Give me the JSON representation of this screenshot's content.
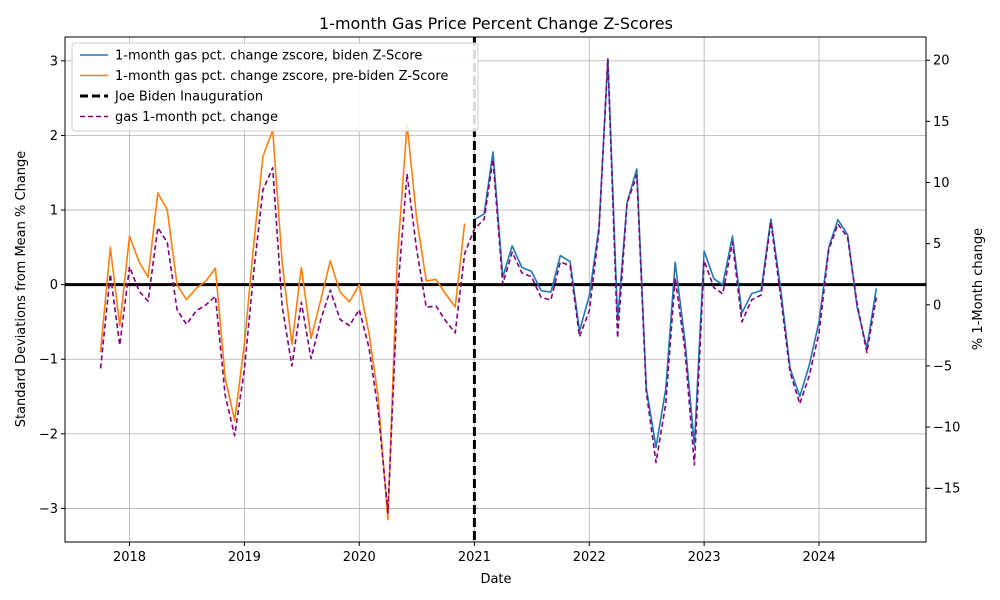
{
  "chart_data": {
    "type": "line",
    "title": "1-month Gas Price Percent Change Z-Scores",
    "xlabel": "Date",
    "ylabel": "Standard Deviations from Mean % Change",
    "ylabel_right": "% 1-Month change",
    "xlim": [
      "2017-06-10",
      "2024-12-06"
    ],
    "ylim": [
      -3.45,
      3.32
    ],
    "ylim_right": [
      -19.4,
      21.9
    ],
    "x_ticks": [
      "2018-01-01",
      "2019-01-01",
      "2020-01-01",
      "2021-01-01",
      "2022-01-01",
      "2023-01-01",
      "2024-01-01"
    ],
    "x_tick_labels": [
      "2018",
      "2019",
      "2020",
      "2021",
      "2022",
      "2023",
      "2024"
    ],
    "y_ticks": [
      -3,
      -2,
      -1,
      0,
      1,
      2,
      3
    ],
    "y_tick_labels": [
      "−3",
      "−2",
      "−1",
      "0",
      "1",
      "2",
      "3"
    ],
    "y_ticks_right": [
      -15,
      -10,
      -5,
      0,
      5,
      10,
      15,
      20
    ],
    "y_tick_labels_right": [
      "−15",
      "−10",
      "−5",
      "0",
      "5",
      "10",
      "15",
      "20"
    ],
    "grid": true,
    "legend_position": "top-left",
    "zero_line": 0,
    "inauguration_date": "2021-01-01",
    "colors": {
      "biden": "#1f77b4",
      "pre_biden": "#ff7f0e",
      "inauguration": "#000000",
      "pct_change": "#800080",
      "grid": "#b0b0b0"
    },
    "pre_biden": {
      "name": "1-month gas pct. change zscore, pre-biden Z-Score",
      "x": [
        "2017-10",
        "2017-11",
        "2017-12",
        "2018-01",
        "2018-02",
        "2018-03",
        "2018-04",
        "2018-05",
        "2018-06",
        "2018-07",
        "2018-08",
        "2018-09",
        "2018-10",
        "2018-11",
        "2018-12",
        "2019-01",
        "2019-02",
        "2019-03",
        "2019-04",
        "2019-05",
        "2019-06",
        "2019-07",
        "2019-08",
        "2019-09",
        "2019-10",
        "2019-11",
        "2019-12",
        "2020-01",
        "2020-02",
        "2020-03",
        "2020-04",
        "2020-05",
        "2020-06",
        "2020-07",
        "2020-08",
        "2020-09",
        "2020-10",
        "2020-11",
        "2020-12"
      ],
      "y": [
        -0.9,
        0.5,
        -0.55,
        0.65,
        0.3,
        0.1,
        1.23,
        1.0,
        0.0,
        -0.2,
        -0.05,
        0.05,
        0.22,
        -1.25,
        -1.82,
        -0.8,
        0.6,
        1.72,
        2.07,
        0.3,
        -0.8,
        0.23,
        -0.72,
        -0.2,
        0.32,
        -0.1,
        -0.23,
        0.0,
        -0.65,
        -1.5,
        -3.15,
        0.35,
        2.15,
        0.9,
        0.05,
        0.07,
        -0.12,
        -0.3,
        0.82
      ]
    },
    "biden": {
      "name": "1-month gas pct. change zscore, biden Z-Score",
      "x": [
        "2021-01",
        "2021-02",
        "2021-03",
        "2021-04",
        "2021-05",
        "2021-06",
        "2021-07",
        "2021-08",
        "2021-09",
        "2021-10",
        "2021-11",
        "2021-12",
        "2022-01",
        "2022-02",
        "2022-03",
        "2022-04",
        "2022-05",
        "2022-06",
        "2022-07",
        "2022-08",
        "2022-09",
        "2022-10",
        "2022-11",
        "2022-12",
        "2023-01",
        "2023-02",
        "2023-03",
        "2023-04",
        "2023-05",
        "2023-06",
        "2023-07",
        "2023-08",
        "2023-09",
        "2023-10",
        "2023-11",
        "2023-12",
        "2024-01",
        "2024-02",
        "2024-03",
        "2024-04",
        "2024-05",
        "2024-06",
        "2024-07"
      ],
      "y": [
        0.87,
        0.95,
        1.78,
        0.1,
        0.52,
        0.23,
        0.18,
        -0.08,
        -0.1,
        0.39,
        0.31,
        -0.62,
        -0.15,
        0.77,
        3.03,
        -0.48,
        1.1,
        1.55,
        -1.38,
        -2.18,
        -1.4,
        0.3,
        -0.75,
        -2.15,
        0.45,
        0.08,
        0.0,
        0.65,
        -0.38,
        -0.12,
        -0.08,
        0.88,
        -0.05,
        -1.12,
        -1.5,
        -1.08,
        -0.5,
        0.5,
        0.87,
        0.67,
        -0.3,
        -0.85,
        -0.05
      ]
    },
    "pct_change": {
      "name": "gas 1-month pct. change",
      "x": [
        "2017-10",
        "2017-11",
        "2017-12",
        "2018-01",
        "2018-02",
        "2018-03",
        "2018-04",
        "2018-05",
        "2018-06",
        "2018-07",
        "2018-08",
        "2018-09",
        "2018-10",
        "2018-11",
        "2018-12",
        "2019-01",
        "2019-02",
        "2019-03",
        "2019-04",
        "2019-05",
        "2019-06",
        "2019-07",
        "2019-08",
        "2019-09",
        "2019-10",
        "2019-11",
        "2019-12",
        "2020-01",
        "2020-02",
        "2020-03",
        "2020-04",
        "2020-05",
        "2020-06",
        "2020-07",
        "2020-08",
        "2020-09",
        "2020-10",
        "2020-11",
        "2020-12",
        "2021-01",
        "2021-02",
        "2021-03",
        "2021-04",
        "2021-05",
        "2021-06",
        "2021-07",
        "2021-08",
        "2021-09",
        "2021-10",
        "2021-11",
        "2021-12",
        "2022-01",
        "2022-02",
        "2022-03",
        "2022-04",
        "2022-05",
        "2022-06",
        "2022-07",
        "2022-08",
        "2022-09",
        "2022-10",
        "2022-11",
        "2022-12",
        "2023-01",
        "2023-02",
        "2023-03",
        "2023-04",
        "2023-05",
        "2023-06",
        "2023-07",
        "2023-08",
        "2023-09",
        "2023-10",
        "2023-11",
        "2023-12",
        "2024-01",
        "2024-02",
        "2024-03",
        "2024-04",
        "2024-05",
        "2024-06",
        "2024-07"
      ],
      "y": [
        -5.2,
        2.5,
        -3.3,
        3.1,
        1.1,
        0.3,
        6.3,
        5.1,
        -0.4,
        -1.6,
        -0.5,
        0.0,
        0.7,
        -7.4,
        -10.7,
        -5.3,
        3.0,
        9.4,
        11.2,
        -0.1,
        -5.0,
        0.2,
        -4.4,
        -1.2,
        1.2,
        -1.2,
        -1.7,
        -0.4,
        -3.5,
        -8.6,
        -17.0,
        0.7,
        10.7,
        4.6,
        -0.2,
        -0.1,
        -1.3,
        -2.3,
        4.2,
        6.2,
        7.0,
        11.9,
        1.7,
        4.3,
        2.6,
        2.3,
        0.6,
        0.4,
        3.5,
        3.2,
        -2.6,
        -0.5,
        6.1,
        20.1,
        -2.7,
        8.3,
        10.6,
        -7.1,
        -12.9,
        -8.1,
        2.2,
        -3.7,
        -13.1,
        3.6,
        1.4,
        0.9,
        5.1,
        -1.4,
        0.4,
        0.8,
        6.8,
        0.7,
        -5.5,
        -8.1,
        -5.8,
        -2.3,
        4.5,
        6.6,
        5.5,
        0.1,
        -3.9,
        0.6
      ]
    },
    "legend": [
      {
        "label": "1-month gas pct. change zscore, biden Z-Score",
        "color": "#1f77b4",
        "style": "solid"
      },
      {
        "label": "1-month gas pct. change zscore, pre-biden Z-Score",
        "color": "#ff7f0e",
        "style": "solid"
      },
      {
        "label": "Joe Biden Inauguration",
        "color": "#000000",
        "style": "dashed-thick"
      },
      {
        "label": "gas 1-month pct. change",
        "color": "#800080",
        "style": "dashed"
      }
    ]
  }
}
